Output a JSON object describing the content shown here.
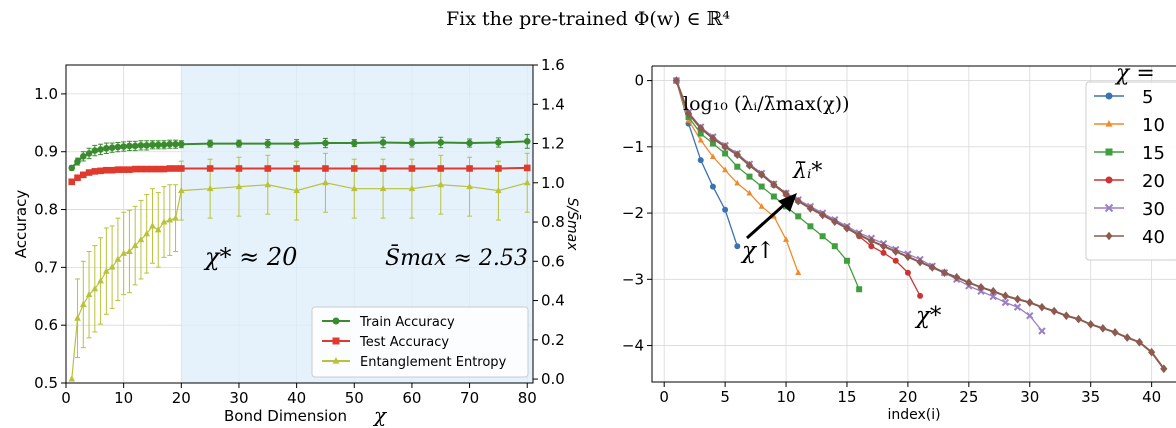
{
  "suptitle": "Fix the pre-trained Φ(w) ∈ ℝ⁴",
  "colors": {
    "train": "#3a8a2e",
    "test": "#e03a2f",
    "entropy": "#b8c23c",
    "shade": "#dceefb",
    "c5": "#3b73b0",
    "c10": "#f28a2a",
    "c15": "#3f9f3f",
    "c20": "#cc3333",
    "c30": "#9b7fc9",
    "c40": "#8c5a4f"
  },
  "chart_data": [
    {
      "type": "line",
      "xlabel": "Bond Dimension",
      "xlabel_symbol": "χ",
      "ylabel": "Accuracy",
      "y2label": "S/S̄max",
      "xlim": [
        0,
        81
      ],
      "ylim": [
        0.5,
        1.05
      ],
      "y2lim": [
        -0.02,
        1.6
      ],
      "xticks": [
        "0",
        "10",
        "20",
        "30",
        "40",
        "50",
        "60",
        "70",
        "80"
      ],
      "yticks": [
        "0.5",
        "0.6",
        "0.7",
        "0.8",
        "0.9",
        "1.0"
      ],
      "y2ticks": [
        "0.0",
        "0.2",
        "0.4",
        "0.6",
        "0.8",
        "1.0",
        "1.2",
        "1.4",
        "1.6"
      ],
      "shaded_region": [
        20,
        81
      ],
      "annotations": [
        "χ* ≈ 20",
        "S̄max ≈ 2.53"
      ],
      "legend_position": "lower-right",
      "series": [
        {
          "name": "Train Accuracy",
          "axis": "left",
          "marker": "circle",
          "x": [
            1,
            2,
            3,
            4,
            5,
            6,
            7,
            8,
            9,
            10,
            11,
            12,
            13,
            14,
            15,
            16,
            17,
            18,
            19,
            20,
            25,
            30,
            35,
            40,
            45,
            50,
            55,
            60,
            65,
            70,
            75,
            80
          ],
          "y": [
            0.872,
            0.883,
            0.892,
            0.897,
            0.902,
            0.904,
            0.906,
            0.907,
            0.908,
            0.909,
            0.91,
            0.91,
            0.911,
            0.911,
            0.912,
            0.912,
            0.912,
            0.913,
            0.913,
            0.913,
            0.914,
            0.914,
            0.914,
            0.914,
            0.915,
            0.915,
            0.916,
            0.915,
            0.916,
            0.915,
            0.916,
            0.918
          ],
          "err": [
            0.004,
            0.006,
            0.008,
            0.009,
            0.009,
            0.009,
            0.009,
            0.008,
            0.008,
            0.008,
            0.008,
            0.008,
            0.008,
            0.008,
            0.007,
            0.007,
            0.007,
            0.007,
            0.007,
            0.006,
            0.006,
            0.006,
            0.007,
            0.007,
            0.008,
            0.006,
            0.009,
            0.007,
            0.009,
            0.007,
            0.008,
            0.012
          ]
        },
        {
          "name": "Test Accuracy",
          "axis": "left",
          "marker": "square",
          "x": [
            1,
            2,
            3,
            4,
            5,
            6,
            7,
            8,
            9,
            10,
            11,
            12,
            13,
            14,
            15,
            16,
            17,
            18,
            19,
            20,
            25,
            30,
            35,
            40,
            45,
            50,
            55,
            60,
            65,
            70,
            75,
            80
          ],
          "y": [
            0.848,
            0.855,
            0.86,
            0.864,
            0.866,
            0.867,
            0.868,
            0.868,
            0.869,
            0.869,
            0.869,
            0.87,
            0.87,
            0.87,
            0.87,
            0.87,
            0.87,
            0.871,
            0.871,
            0.871,
            0.871,
            0.871,
            0.871,
            0.871,
            0.871,
            0.871,
            0.871,
            0.871,
            0.871,
            0.871,
            0.871,
            0.872
          ],
          "err": [
            0.002,
            0.002,
            0.002,
            0.002,
            0.002,
            0.002,
            0.002,
            0.002,
            0.002,
            0.002,
            0.002,
            0.002,
            0.002,
            0.002,
            0.002,
            0.002,
            0.002,
            0.002,
            0.002,
            0.002,
            0.002,
            0.002,
            0.002,
            0.002,
            0.002,
            0.002,
            0.002,
            0.002,
            0.002,
            0.002,
            0.002,
            0.002
          ]
        },
        {
          "name": "Entanglement Entropy",
          "axis": "right",
          "marker": "triangle",
          "x": [
            1,
            2,
            3,
            4,
            5,
            6,
            7,
            8,
            9,
            10,
            11,
            12,
            13,
            14,
            15,
            16,
            17,
            18,
            19,
            20,
            25,
            30,
            35,
            40,
            45,
            50,
            55,
            60,
            65,
            70,
            75,
            80
          ],
          "y": [
            0.0,
            0.31,
            0.38,
            0.43,
            0.46,
            0.5,
            0.55,
            0.57,
            0.61,
            0.64,
            0.65,
            0.68,
            0.71,
            0.74,
            0.78,
            0.76,
            0.8,
            0.81,
            0.82,
            0.96,
            0.97,
            0.98,
            0.99,
            0.96,
            1.0,
            0.97,
            0.97,
            0.97,
            0.99,
            0.98,
            0.96,
            1.0
          ],
          "err": [
            0.0,
            0.2,
            0.22,
            0.22,
            0.22,
            0.22,
            0.22,
            0.21,
            0.21,
            0.21,
            0.21,
            0.2,
            0.2,
            0.2,
            0.19,
            0.19,
            0.18,
            0.18,
            0.17,
            0.15,
            0.15,
            0.15,
            0.15,
            0.15,
            0.15,
            0.15,
            0.15,
            0.15,
            0.15,
            0.15,
            0.15,
            0.15
          ]
        }
      ]
    },
    {
      "type": "line",
      "xlabel": "index(i)",
      "ylabel": "",
      "title_annotation": "log₁₀ (λᵢ/λ̄max(χ))",
      "xlim": [
        -1,
        42
      ],
      "ylim": [
        -4.55,
        0.22
      ],
      "xticks": [
        "0",
        "5",
        "10",
        "15",
        "20",
        "25",
        "30",
        "35",
        "40"
      ],
      "yticks": [
        "0",
        "−1",
        "−2",
        "−3",
        "−4"
      ],
      "annotations": [
        "λ̄ᵢ*",
        "χ↑",
        "χ*"
      ],
      "legend_title": "χ =",
      "legend_position": "top-right",
      "series": [
        {
          "name": "5",
          "marker": "circle",
          "x": [
            1,
            2,
            3,
            4,
            5,
            6
          ],
          "y": [
            0,
            -0.65,
            -1.2,
            -1.6,
            -1.95,
            -2.5
          ]
        },
        {
          "name": "10",
          "marker": "triangle",
          "x": [
            1,
            2,
            3,
            4,
            5,
            6,
            7,
            8,
            9,
            10,
            11
          ],
          "y": [
            0,
            -0.6,
            -0.9,
            -1.15,
            -1.35,
            -1.55,
            -1.7,
            -1.9,
            -2.05,
            -2.4,
            -2.9
          ]
        },
        {
          "name": "15",
          "marker": "square",
          "x": [
            1,
            2,
            3,
            4,
            5,
            6,
            7,
            8,
            9,
            10,
            11,
            12,
            13,
            14,
            15,
            16
          ],
          "y": [
            0,
            -0.55,
            -0.8,
            -0.95,
            -1.1,
            -1.3,
            -1.45,
            -1.6,
            -1.75,
            -1.9,
            -2.05,
            -2.2,
            -2.35,
            -2.5,
            -2.72,
            -3.15
          ]
        },
        {
          "name": "20",
          "marker": "circle",
          "x": [
            1,
            2,
            3,
            4,
            5,
            6,
            7,
            8,
            9,
            10,
            11,
            12,
            13,
            14,
            15,
            16,
            17,
            18,
            19,
            20,
            21
          ],
          "y": [
            0,
            -0.5,
            -0.72,
            -0.88,
            -1.0,
            -1.12,
            -1.28,
            -1.42,
            -1.58,
            -1.72,
            -1.82,
            -1.92,
            -2.02,
            -2.12,
            -2.22,
            -2.35,
            -2.5,
            -2.6,
            -2.72,
            -2.9,
            -3.25
          ]
        },
        {
          "name": "30",
          "marker": "x",
          "x": [
            1,
            2,
            3,
            4,
            5,
            6,
            7,
            8,
            9,
            10,
            11,
            12,
            13,
            14,
            15,
            16,
            17,
            18,
            19,
            20,
            21,
            22,
            23,
            24,
            25,
            26,
            27,
            28,
            29,
            30,
            31
          ],
          "y": [
            0,
            -0.48,
            -0.7,
            -0.85,
            -0.98,
            -1.1,
            -1.26,
            -1.4,
            -1.56,
            -1.7,
            -1.8,
            -1.9,
            -2.0,
            -2.1,
            -2.2,
            -2.3,
            -2.38,
            -2.46,
            -2.55,
            -2.62,
            -2.7,
            -2.8,
            -2.9,
            -3.0,
            -3.1,
            -3.18,
            -3.26,
            -3.35,
            -3.42,
            -3.55,
            -3.78
          ]
        },
        {
          "name": "40",
          "marker": "diamond",
          "x": [
            1,
            2,
            3,
            4,
            5,
            6,
            7,
            8,
            9,
            10,
            11,
            12,
            13,
            14,
            15,
            16,
            17,
            18,
            19,
            20,
            21,
            22,
            23,
            24,
            25,
            26,
            27,
            28,
            29,
            30,
            31,
            32,
            33,
            34,
            35,
            36,
            37,
            38,
            39,
            40,
            41
          ],
          "y": [
            0,
            -0.5,
            -0.72,
            -0.87,
            -1.0,
            -1.12,
            -1.28,
            -1.42,
            -1.57,
            -1.71,
            -1.82,
            -1.93,
            -2.03,
            -2.13,
            -2.23,
            -2.33,
            -2.42,
            -2.5,
            -2.58,
            -2.66,
            -2.74,
            -2.82,
            -2.9,
            -2.97,
            -3.05,
            -3.12,
            -3.18,
            -3.25,
            -3.3,
            -3.35,
            -3.42,
            -3.48,
            -3.55,
            -3.6,
            -3.68,
            -3.74,
            -3.8,
            -3.88,
            -3.95,
            -4.1,
            -4.35
          ]
        }
      ]
    }
  ]
}
